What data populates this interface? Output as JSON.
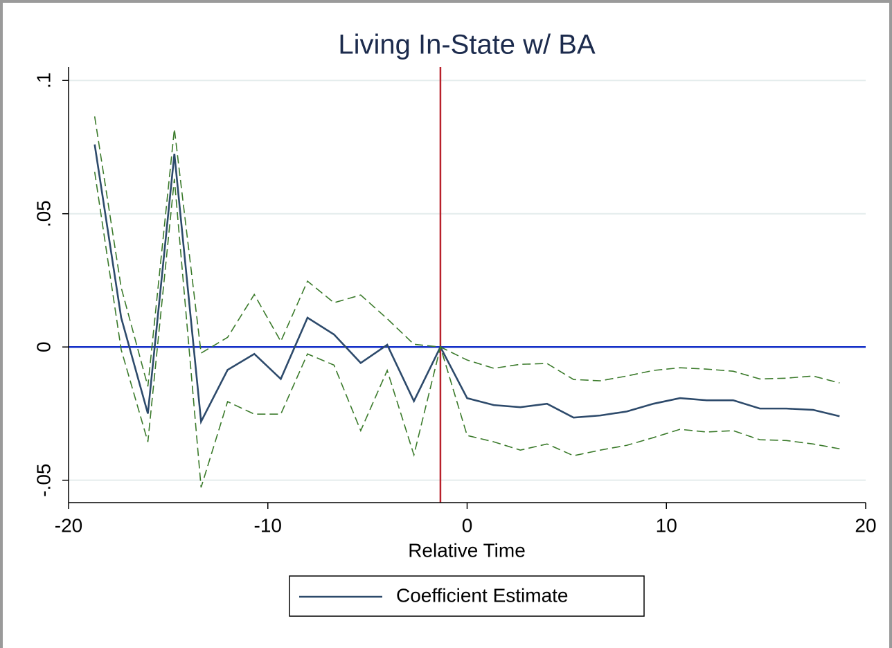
{
  "chart_data": {
    "type": "line",
    "title": "Living In-State w/ BA",
    "xlabel": "Relative Time",
    "x": [
      -18.69,
      -17.36,
      -16.02,
      -14.69,
      -13.35,
      -12.02,
      -10.68,
      -9.35,
      -8.01,
      -6.68,
      -5.34,
      -4.01,
      -2.67,
      -1.34,
      0,
      1.34,
      2.67,
      4.01,
      5.34,
      6.68,
      8.01,
      9.35,
      10.68,
      12.02,
      13.35,
      14.69,
      16.02,
      17.36,
      18.69
    ],
    "series": [
      {
        "name": "Coefficient Estimate",
        "color": "#2d4a6b",
        "values": [
          0.076,
          0.011,
          -0.025,
          0.0725,
          -0.028,
          -0.0086,
          -0.0026,
          -0.012,
          0.011,
          0.0047,
          -0.006,
          0.0008,
          -0.0203,
          0,
          -0.0192,
          -0.0218,
          -0.0226,
          -0.0213,
          -0.0265,
          -0.0257,
          -0.0242,
          -0.0213,
          -0.0192,
          -0.02,
          -0.02,
          -0.0231,
          -0.0231,
          -0.0236,
          -0.026
        ]
      },
      {
        "color": "#3a7a2a",
        "dashed": true,
        "values": [
          0.0865,
          0.0223,
          -0.0148,
          0.0818,
          -0.0023,
          0.0036,
          0.0197,
          0.0021,
          0.0247,
          0.0166,
          0.0195,
          0.0106,
          0.001,
          0,
          -0.0049,
          -0.008,
          -0.0065,
          -0.0062,
          -0.0122,
          -0.0127,
          -0.0109,
          -0.0088,
          -0.0078,
          -0.0083,
          -0.0091,
          -0.012,
          -0.0117,
          -0.0109,
          -0.0135
        ]
      },
      {
        "color": "#3a7a2a",
        "dashed": true,
        "values": [
          0.0657,
          -0.001,
          -0.0356,
          0.0631,
          -0.0527,
          -0.0205,
          -0.0252,
          -0.0252,
          -0.0026,
          -0.0068,
          -0.0314,
          -0.0088,
          -0.0405,
          0,
          -0.0332,
          -0.0356,
          -0.0387,
          -0.0364,
          -0.0408,
          -0.0387,
          -0.0369,
          -0.034,
          -0.0309,
          -0.0319,
          -0.0314,
          -0.0348,
          -0.0351,
          -0.0364,
          -0.0382
        ]
      }
    ],
    "xlim": [
      -20,
      20
    ],
    "xticks": [
      -20,
      -10,
      0,
      10,
      20
    ],
    "ylim": [
      -0.0584,
      0.105
    ],
    "yticks": [
      {
        "value": -0.05,
        "label": "-.05"
      },
      0,
      {
        "value": 0.05,
        "label": ".05"
      },
      {
        "value": 0.1,
        "label": ".1"
      }
    ],
    "grid": true,
    "vline": {
      "value": -1.34,
      "color": "#b8202a"
    },
    "hline": {
      "value": 0,
      "color": "#1530c8"
    },
    "legend": "bottom"
  }
}
